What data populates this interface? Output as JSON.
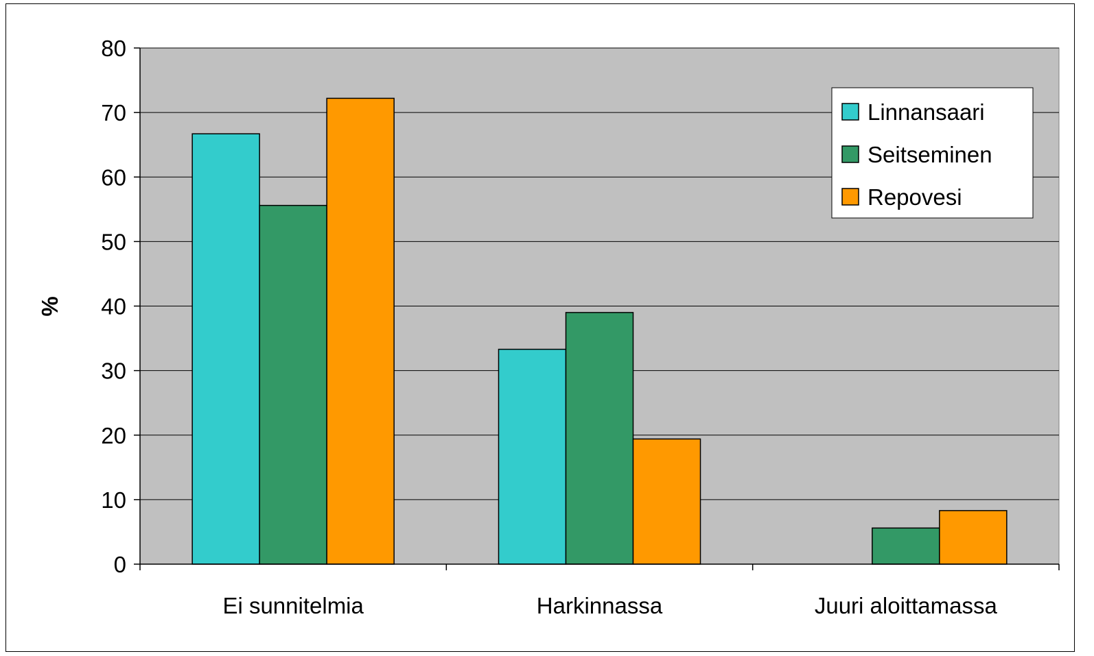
{
  "chart_data": {
    "type": "bar",
    "categories": [
      "Ei sunnitelmia",
      "Harkinnassa",
      "Juuri aloittamassa"
    ],
    "series": [
      {
        "name": "Linnansaari",
        "color": "#33CCCC",
        "values": [
          66.7,
          33.3,
          0
        ]
      },
      {
        "name": "Seitseminen",
        "color": "#339966",
        "values": [
          55.6,
          39.0,
          5.6
        ]
      },
      {
        "name": "Repovesi",
        "color": "#FF9900",
        "values": [
          72.2,
          19.4,
          8.3
        ]
      }
    ],
    "ylabel": "%",
    "ylim": [
      0,
      80
    ],
    "yticks": [
      0,
      10,
      20,
      30,
      40,
      50,
      60,
      70,
      80
    ],
    "grid": true,
    "plot_background": "#C0C0C0",
    "legend_position": "top-right"
  }
}
